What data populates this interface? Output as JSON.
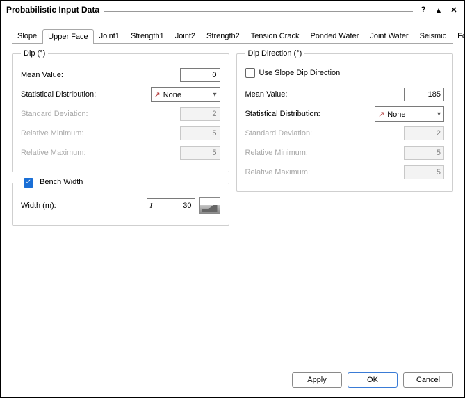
{
  "window": {
    "title": "Probabilistic Input Data"
  },
  "tabs": {
    "items": [
      "Slope",
      "Upper Face",
      "Joint1",
      "Strength1",
      "Joint2",
      "Strength2",
      "Tension Crack",
      "Ponded Water",
      "Joint Water",
      "Seismic",
      "Forces"
    ],
    "active_index": 1
  },
  "dip": {
    "legend": "Dip (°)",
    "mean_label": "Mean Value:",
    "mean_value": "0",
    "dist_label": "Statistical Distribution:",
    "dist_value": "None",
    "sd_label": "Standard Deviation:",
    "sd_value": "2",
    "relmin_label": "Relative Minimum:",
    "relmin_value": "5",
    "relmax_label": "Relative Maximum:",
    "relmax_value": "5"
  },
  "bench": {
    "legend_label": "Bench Width",
    "legend_checked": true,
    "width_label": "Width (m):",
    "width_value": "30"
  },
  "dipdir": {
    "legend": "Dip Direction (°)",
    "useslope_label": "Use Slope Dip Direction",
    "useslope_checked": false,
    "mean_label": "Mean Value:",
    "mean_value": "185",
    "dist_label": "Statistical Distribution:",
    "dist_value": "None",
    "sd_label": "Standard Deviation:",
    "sd_value": "2",
    "relmin_label": "Relative Minimum:",
    "relmin_value": "5",
    "relmax_label": "Relative Maximum:",
    "relmax_value": "5"
  },
  "buttons": {
    "apply": "Apply",
    "ok": "OK",
    "cancel": "Cancel"
  },
  "colors": {
    "accent": "#1a6fd6",
    "border": "#a8a8a8",
    "disabled_text": "#a9a9a9"
  }
}
